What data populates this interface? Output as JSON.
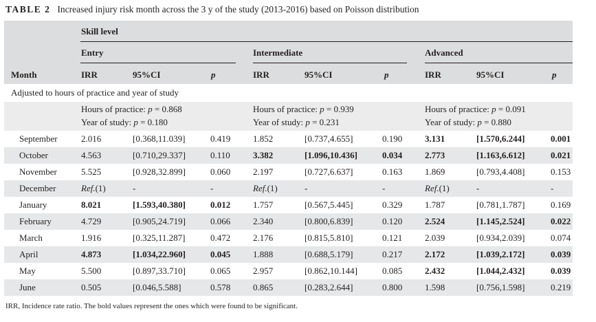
{
  "title": {
    "label": "TABLE 2",
    "text": "Increased injury risk month across the 3 y of the study (2013-2016) based on Poisson distribution"
  },
  "header": {
    "skill_level": "Skill level",
    "groups": [
      "Entry",
      "Intermediate",
      "Advanced"
    ],
    "month": "Month",
    "irr": "IRR",
    "ci": "95%CI",
    "p": "p"
  },
  "adjusted": "Adjusted to hours of practice and year of study",
  "covariates": [
    {
      "hours": "Hours of practice: p = 0.868",
      "year": "Year of study: p = 0.180"
    },
    {
      "hours": "Hours of practice: p = 0.939",
      "year": "Year of study: p = 0.231"
    },
    {
      "hours": "Hours of practice: p = 0.091",
      "year": "Year of study: p = 0.880"
    }
  ],
  "rows": [
    {
      "month": "September",
      "cells": [
        [
          "2.016",
          0
        ],
        [
          "[0.368,11.039]",
          0
        ],
        [
          "0.419",
          0
        ],
        [
          "1.852",
          0
        ],
        [
          "[0.737,4.655]",
          0
        ],
        [
          "0.190",
          0
        ],
        [
          "3.131",
          1
        ],
        [
          "[1.570,6.244]",
          1
        ],
        [
          "0.001",
          1
        ]
      ]
    },
    {
      "month": "October",
      "cells": [
        [
          "4.563",
          0
        ],
        [
          "[0.710,29.337]",
          0
        ],
        [
          "0.110",
          0
        ],
        [
          "3.382",
          1
        ],
        [
          "[1.096,10.436]",
          1
        ],
        [
          "0.034",
          1
        ],
        [
          "2.773",
          1
        ],
        [
          "[1.163,6.612]",
          1
        ],
        [
          "0.021",
          1
        ]
      ]
    },
    {
      "month": "November",
      "cells": [
        [
          "5.525",
          0
        ],
        [
          "[0.928,32.899]",
          0
        ],
        [
          "0.060",
          0
        ],
        [
          "2.197",
          0
        ],
        [
          "[0.727,6.637]",
          0
        ],
        [
          "0.163",
          0
        ],
        [
          "1.869",
          0
        ],
        [
          "[0.793,4.408]",
          0
        ],
        [
          "0.153",
          0
        ]
      ]
    },
    {
      "month": "December",
      "cells": [
        [
          "Ref.(1)",
          0
        ],
        [
          "-",
          0
        ],
        [
          "-",
          0
        ],
        [
          "Ref.(1)",
          0
        ],
        [
          "-",
          0
        ],
        [
          "-",
          0
        ],
        [
          "Ref.(1)",
          0
        ],
        [
          "-",
          0
        ],
        [
          "-",
          0
        ]
      ]
    },
    {
      "month": "January",
      "cells": [
        [
          "8.021",
          1
        ],
        [
          "[1.593,40.380]",
          1
        ],
        [
          "0.012",
          1
        ],
        [
          "1.757",
          0
        ],
        [
          "[0.567,5.445]",
          0
        ],
        [
          "0.329",
          0
        ],
        [
          "1.787",
          0
        ],
        [
          "[0.781,1.787]",
          0
        ],
        [
          "0.169",
          0
        ]
      ]
    },
    {
      "month": "February",
      "cells": [
        [
          "4.729",
          0
        ],
        [
          "[0.905,24.719]",
          0
        ],
        [
          "0.066",
          0
        ],
        [
          "2.340",
          0
        ],
        [
          "[0.800,6.839]",
          0
        ],
        [
          "0.120",
          0
        ],
        [
          "2.524",
          1
        ],
        [
          "[1.145,2.524]",
          1
        ],
        [
          "0.022",
          1
        ]
      ]
    },
    {
      "month": "March",
      "cells": [
        [
          "1.916",
          0
        ],
        [
          "[0.325,11.287]",
          0
        ],
        [
          "0.472",
          0
        ],
        [
          "2.176",
          0
        ],
        [
          "[0.815,5.810]",
          0
        ],
        [
          "0.121",
          0
        ],
        [
          "2.039",
          0
        ],
        [
          "[0.934,2.039]",
          0
        ],
        [
          "0.074",
          0
        ]
      ]
    },
    {
      "month": "April",
      "cells": [
        [
          "4.873",
          1
        ],
        [
          "[1.034,22.960]",
          1
        ],
        [
          "0.045",
          1
        ],
        [
          "1.888",
          0
        ],
        [
          "[0.688,5.179]",
          0
        ],
        [
          "0.217",
          0
        ],
        [
          "2.172",
          1
        ],
        [
          "[1.039,2.172]",
          1
        ],
        [
          "0.039",
          1
        ]
      ]
    },
    {
      "month": "May",
      "cells": [
        [
          "5.500",
          0
        ],
        [
          "[0.897,33.710]",
          0
        ],
        [
          "0.065",
          0
        ],
        [
          "2.957",
          0
        ],
        [
          "[0.862,10.144]",
          0
        ],
        [
          "0.085",
          0
        ],
        [
          "2.432",
          1
        ],
        [
          "[1.044,2.432]",
          1
        ],
        [
          "0.039",
          1
        ]
      ]
    },
    {
      "month": "June",
      "cells": [
        [
          "0.505",
          0
        ],
        [
          "[0.046,5.588]",
          0
        ],
        [
          "0.578",
          0
        ],
        [
          "0.865",
          0
        ],
        [
          "[0.283,2.644]",
          0
        ],
        [
          "0.800",
          0
        ],
        [
          "1.598",
          0
        ],
        [
          "[0.756,1.598]",
          0
        ],
        [
          "0.219",
          0
        ]
      ]
    }
  ],
  "footnote": "IRR, Incidence rate ratio. The bold values represent the ones which were found to be significant."
}
